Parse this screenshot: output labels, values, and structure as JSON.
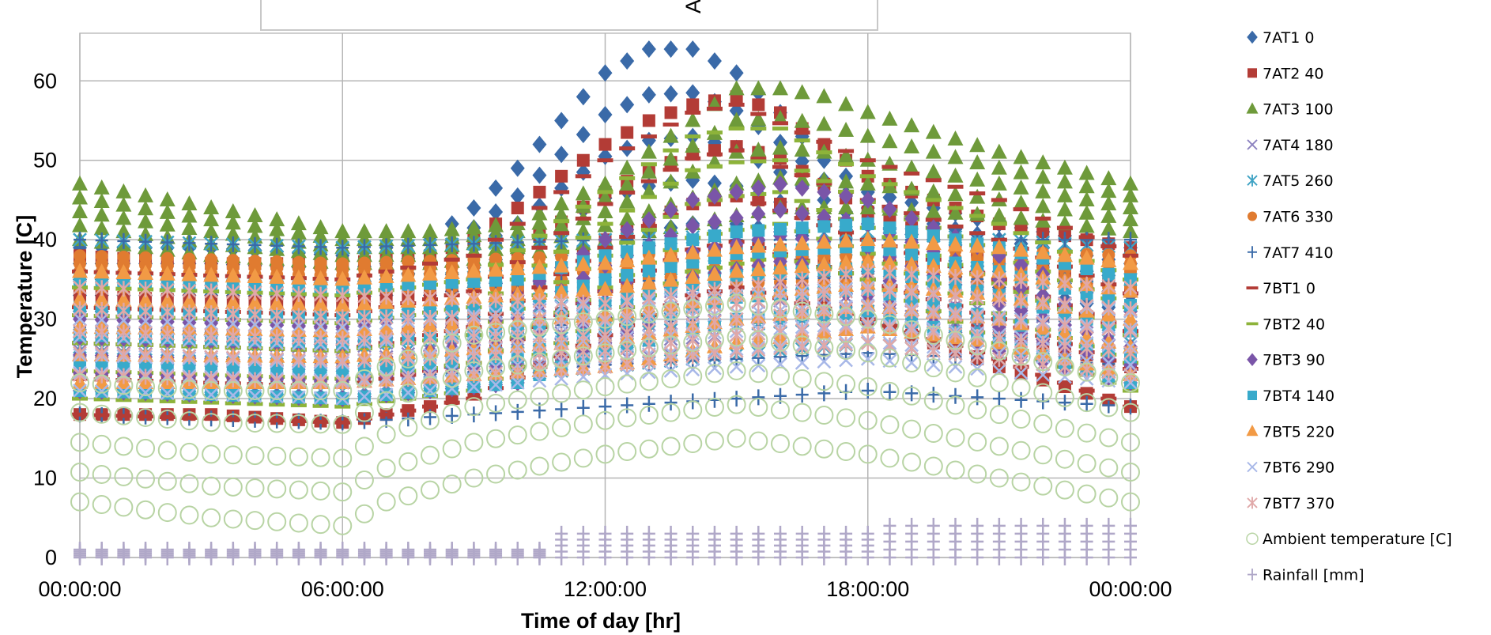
{
  "chart_data": {
    "type": "scatter",
    "title": "A",
    "xlabel": "Time of day [hr]",
    "ylabel": "Temperature [C]",
    "x_ticks": [
      "00:00:00",
      "06:00:00",
      "12:00:00",
      "18:00:00",
      "00:00:00"
    ],
    "y_ticks": [
      "0",
      "10",
      "20",
      "30",
      "40",
      "50",
      "60"
    ],
    "xlim_hours": [
      0,
      24
    ],
    "ylim": [
      0,
      66
    ],
    "grid": true,
    "legend_position": "right",
    "series": [
      {
        "name": "7AT1 0",
        "marker": "diamond",
        "color": "#3A6AA8",
        "profile": {
          "hours": [
            0,
            3,
            6,
            7,
            8,
            9,
            10,
            11,
            12,
            13,
            14,
            15,
            16,
            17,
            18,
            21,
            24
          ],
          "low": [
            31,
            31,
            31,
            31,
            33,
            34,
            35,
            38,
            40,
            41,
            42,
            42,
            41,
            40,
            38,
            34,
            31
          ],
          "high": [
            39,
            39,
            38,
            39,
            40,
            44,
            49,
            55,
            61,
            64,
            64,
            61,
            56,
            50,
            46,
            42,
            39
          ]
        }
      },
      {
        "name": "7AT2 40",
        "marker": "square",
        "color": "#B33C36",
        "profile": {
          "hours": [
            0,
            3,
            6,
            8,
            9,
            10,
            11,
            12,
            13,
            14,
            15,
            16,
            17,
            18,
            21,
            24
          ],
          "low": [
            18,
            18,
            17,
            19,
            21,
            23,
            25,
            28,
            30,
            32,
            33,
            33,
            32,
            30,
            24,
            19
          ],
          "high": [
            38,
            37,
            37,
            38,
            40,
            44,
            48,
            52,
            55,
            57,
            58,
            56,
            52,
            48,
            42,
            39
          ]
        }
      },
      {
        "name": "7AT3 100",
        "marker": "triangle",
        "color": "#6E9A3A",
        "profile": {
          "hours": [
            0,
            3,
            6,
            8,
            10,
            12,
            14,
            15,
            16,
            17,
            18,
            21,
            24
          ],
          "low": [
            40,
            38,
            37,
            37,
            38,
            40,
            42,
            43,
            44,
            44,
            44,
            43,
            41
          ],
          "high": [
            47,
            44,
            41,
            41,
            42,
            47,
            55,
            59,
            59,
            58,
            56,
            51,
            47
          ]
        }
      },
      {
        "name": "7AT4 180",
        "marker": "x",
        "color": "#8C82C0",
        "profile": {
          "hours": [
            0,
            6,
            12,
            18,
            24
          ],
          "low": [
            22,
            21,
            25,
            27,
            23
          ],
          "high": [
            30,
            28,
            33,
            35,
            31
          ]
        }
      },
      {
        "name": "7AT5 260",
        "marker": "star",
        "color": "#3FA3C4",
        "profile": {
          "hours": [
            0,
            6,
            12,
            18,
            24
          ],
          "low": [
            22,
            21,
            24,
            27,
            23
          ],
          "high": [
            40,
            39,
            40,
            41,
            39
          ]
        }
      },
      {
        "name": "7AT6 330",
        "marker": "circle",
        "color": "#E07B30",
        "profile": {
          "hours": [
            0,
            6,
            12,
            18,
            24
          ],
          "low": [
            34,
            34,
            34,
            35,
            34
          ],
          "high": [
            38,
            37,
            38,
            39,
            38
          ]
        }
      },
      {
        "name": "7AT7 410",
        "marker": "plus",
        "color": "#3A6AA8",
        "profile": {
          "hours": [
            0,
            6,
            12,
            18,
            24
          ],
          "low": [
            18,
            17,
            19,
            21,
            19
          ],
          "high": [
            40,
            39,
            40,
            40,
            40
          ]
        }
      },
      {
        "name": "7BT1 0",
        "marker": "dash",
        "color": "#B33C36",
        "profile": {
          "hours": [
            0,
            6,
            9,
            12,
            14,
            15,
            18,
            21,
            24
          ],
          "low": [
            18,
            17,
            20,
            28,
            33,
            34,
            30,
            25,
            19
          ],
          "high": [
            36,
            35,
            38,
            50,
            56,
            57,
            50,
            45,
            38
          ]
        }
      },
      {
        "name": "7BT2 40",
        "marker": "dash",
        "color": "#8DB33A",
        "profile": {
          "hours": [
            0,
            6,
            9,
            12,
            14,
            15,
            16,
            18,
            21,
            24
          ],
          "low": [
            20,
            19,
            21,
            30,
            36,
            37,
            38,
            35,
            27,
            21
          ],
          "high": [
            34,
            33,
            35,
            46,
            53,
            54,
            54,
            48,
            42,
            35
          ]
        }
      },
      {
        "name": "7BT3 90",
        "marker": "diamond",
        "color": "#7A55A8",
        "profile": {
          "hours": [
            0,
            6,
            10,
            12,
            14,
            16,
            18,
            21,
            24
          ],
          "low": [
            21,
            20,
            22,
            27,
            32,
            34,
            33,
            26,
            22
          ],
          "high": [
            30,
            29,
            33,
            40,
            45,
            47,
            45,
            38,
            31
          ]
        }
      },
      {
        "name": "7BT4 140",
        "marker": "square",
        "color": "#38AACB",
        "profile": {
          "hours": [
            0,
            6,
            10,
            12,
            15,
            18,
            21,
            24
          ],
          "low": [
            21,
            20,
            22,
            26,
            30,
            31,
            27,
            22
          ],
          "high": [
            35,
            34,
            35,
            38,
            41,
            42,
            39,
            35
          ]
        }
      },
      {
        "name": "7BT5 220",
        "marker": "triangle",
        "color": "#F29A45",
        "profile": {
          "hours": [
            0,
            6,
            12,
            15,
            18,
            21,
            24
          ],
          "low": [
            22,
            22,
            24,
            27,
            29,
            27,
            23
          ],
          "high": [
            36,
            35,
            37,
            39,
            40,
            39,
            37
          ]
        }
      },
      {
        "name": "7BT6 290",
        "marker": "x",
        "color": "#A8B8E8",
        "profile": {
          "hours": [
            0,
            6,
            12,
            18,
            24
          ],
          "low": [
            21,
            20,
            23,
            25,
            22
          ],
          "high": [
            30,
            29,
            32,
            34,
            31
          ]
        }
      },
      {
        "name": "7BT7 370",
        "marker": "star",
        "color": "#E0A8A8",
        "profile": {
          "hours": [
            0,
            6,
            12,
            15,
            18,
            21,
            24
          ],
          "low": [
            23,
            22,
            24,
            26,
            27,
            25,
            23
          ],
          "high": [
            34,
            33,
            32,
            34,
            36,
            35,
            34
          ]
        }
      },
      {
        "name": "Ambient temperature [C]",
        "marker": "ocircle",
        "color": "#B8D4A4",
        "profile": {
          "hours": [
            0,
            3,
            6,
            7,
            9,
            12,
            15,
            18,
            21,
            24
          ],
          "low": [
            7,
            5,
            4,
            7,
            10,
            13,
            15,
            13,
            10,
            7
          ],
          "high": [
            22,
            21,
            21,
            24,
            28,
            30,
            32,
            30,
            26,
            22
          ]
        }
      },
      {
        "name": "Rainfall [mm]",
        "marker": "plus",
        "color": "#B0A8C8",
        "profile": {
          "hours": [
            0,
            10.5,
            10.6,
            18,
            18.1,
            24
          ],
          "low": [
            0,
            0,
            0,
            0,
            0,
            0
          ],
          "high": [
            1,
            1,
            3,
            3,
            4,
            4
          ]
        }
      }
    ]
  }
}
